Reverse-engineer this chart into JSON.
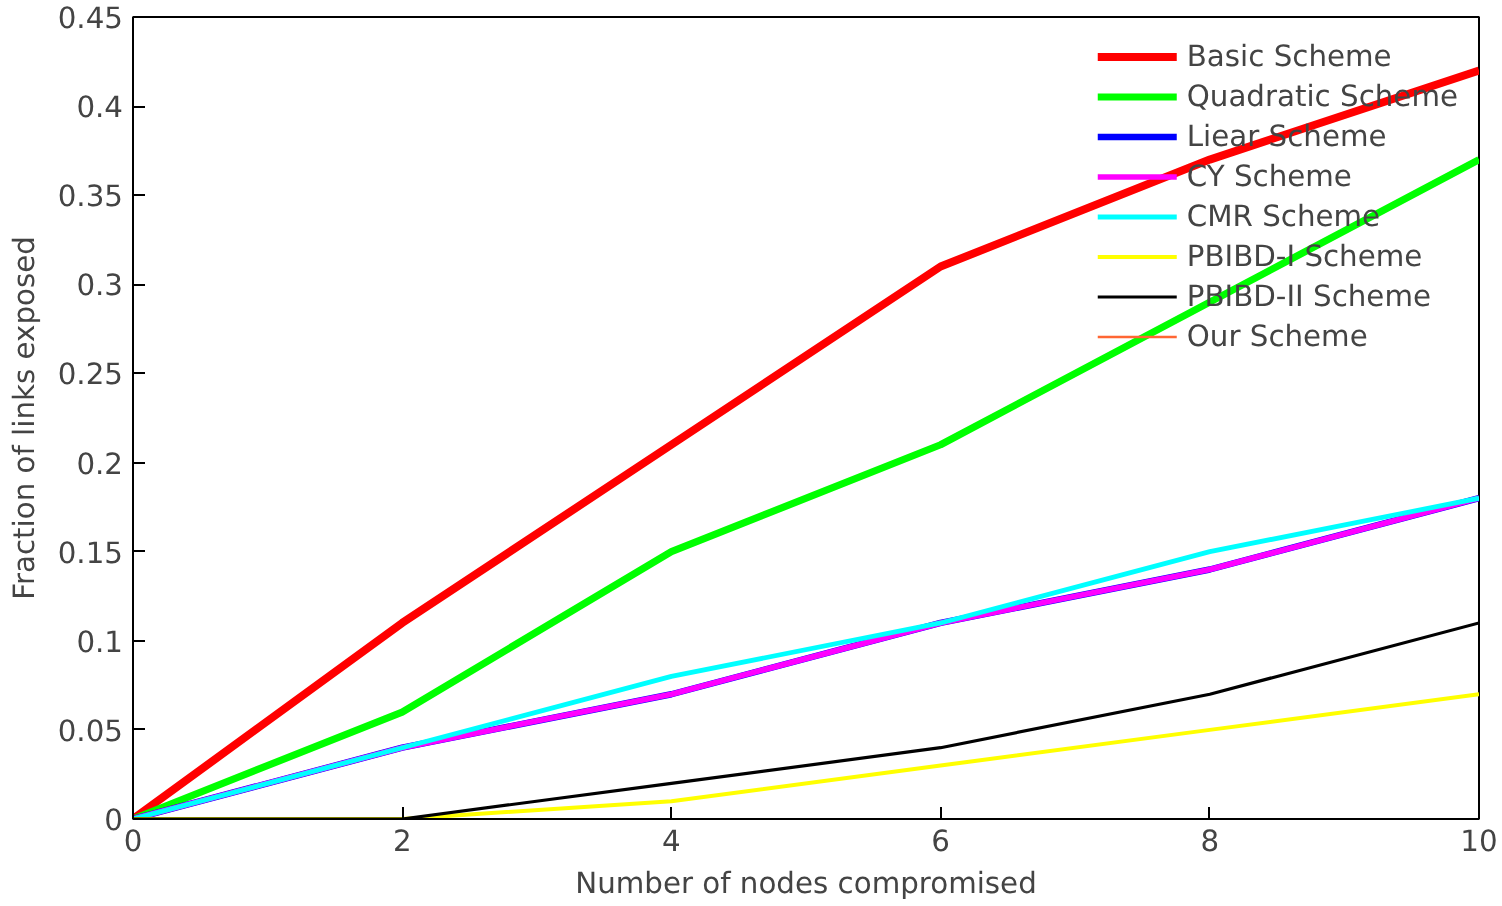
{
  "chart_data": {
    "type": "line",
    "xlabel": "Number of nodes compromised",
    "ylabel": "Fraction of links exposed",
    "x": [
      0,
      2,
      4,
      6,
      8,
      10
    ],
    "series": [
      {
        "name": "Basic Scheme",
        "color": "#ff0000",
        "values": [
          0,
          0.11,
          0.21,
          0.31,
          0.37,
          0.42
        ]
      },
      {
        "name": "Quadratic Scheme",
        "color": "#00ff00",
        "values": [
          0,
          0.06,
          0.15,
          0.21,
          0.29,
          0.37
        ]
      },
      {
        "name": "Liear Scheme",
        "color": "#0000ff",
        "values": [
          0,
          0.04,
          0.07,
          0.11,
          0.14,
          0.18
        ]
      },
      {
        "name": "CY Scheme",
        "color": "#ff00ff",
        "values": [
          0,
          0.04,
          0.07,
          0.11,
          0.14,
          0.18
        ]
      },
      {
        "name": "CMR Scheme",
        "color": "#00ffff",
        "values": [
          0,
          0.04,
          0.08,
          0.11,
          0.15,
          0.18
        ]
      },
      {
        "name": "PBIBD-I Scheme",
        "color": "#ffff00",
        "values": [
          0,
          0,
          0.01,
          0.03,
          0.05,
          0.07
        ]
      },
      {
        "name": "PBIBD-II Scheme",
        "color": "#000000",
        "values": [
          0,
          0,
          0.02,
          0.04,
          0.07,
          0.11
        ]
      },
      {
        "name": "Our Scheme",
        "color": "#ff6633",
        "values": [
          null,
          null,
          null,
          null,
          null,
          null
        ]
      }
    ],
    "xlim": [
      0,
      10
    ],
    "ylim": [
      0,
      0.45
    ],
    "xticks": [
      0,
      2,
      4,
      6,
      8,
      10
    ],
    "yticks": [
      0,
      0.05,
      0.1,
      0.15,
      0.2,
      0.25,
      0.3,
      0.35,
      0.4,
      0.45
    ],
    "grid": false,
    "legend": "top right",
    "marker": "none",
    "line_style": "solid"
  }
}
